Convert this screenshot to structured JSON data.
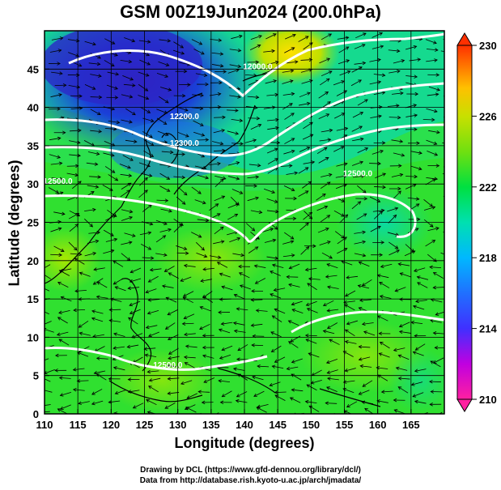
{
  "title": "GSM 00Z19Jun2024 (200.0hPa)",
  "xlabel": "Longitude (degrees)",
  "ylabel": "Latitude  (degrees)",
  "credits": {
    "line1": "Drawing by DCL (https://www.gfd-dennou.org/library/dcl/)",
    "line2": "Data from http://database.rish.kyoto-u.ac.jp/arch/jmadata/"
  },
  "chart_data": {
    "type": "heatmap",
    "x_ticks": [
      110,
      115,
      120,
      125,
      130,
      135,
      140,
      145,
      150,
      155,
      160,
      165
    ],
    "y_ticks": [
      0,
      5,
      10,
      15,
      20,
      25,
      30,
      35,
      40,
      45
    ],
    "xlim": [
      110,
      170
    ],
    "ylim": [
      0,
      50
    ],
    "colorbar": {
      "ticks": [
        210,
        214,
        218,
        222,
        226,
        230
      ],
      "range": [
        210,
        230
      ],
      "colors": [
        "#ff0090",
        "#b000ff",
        "#3030ff",
        "#0080ff",
        "#00c8ff",
        "#00e0a0",
        "#00e040",
        "#60e020",
        "#b0e000",
        "#ffe000",
        "#ffa000",
        "#ff4000"
      ]
    },
    "contours": [
      {
        "label": "12000.0",
        "lon": 142,
        "lat": 45
      },
      {
        "label": "12200.0",
        "lon": 131,
        "lat": 38.5
      },
      {
        "label": "12300.0",
        "lon": 131,
        "lat": 35
      },
      {
        "label": "12500.0",
        "lon": 112,
        "lat": 30
      },
      {
        "label": "12500.0",
        "lon": 157,
        "lat": 31
      },
      {
        "label": "12500.0",
        "lon": 128.5,
        "lat": 6
      }
    ]
  }
}
